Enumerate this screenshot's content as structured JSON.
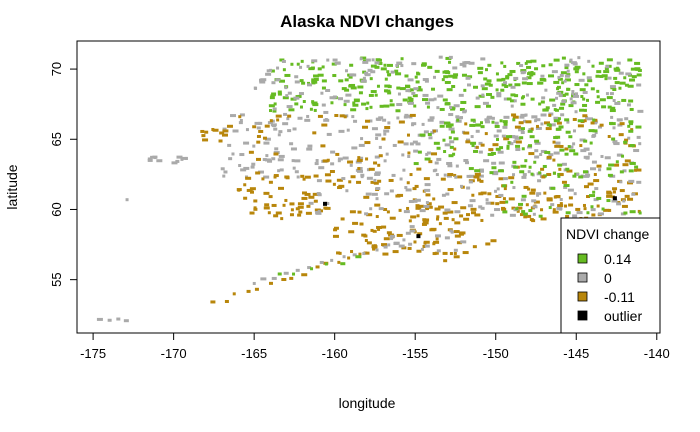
{
  "chart_data": {
    "type": "scatter",
    "title": "Alaska NDVI changes",
    "xlabel": "longitude",
    "ylabel": "latitude",
    "xlim": [
      -176,
      -139.8
    ],
    "ylim": [
      51.2,
      72.0
    ],
    "x_ticks": [
      -175,
      -170,
      -165,
      -160,
      -155,
      -150,
      -145,
      -140
    ],
    "y_ticks": [
      55,
      60,
      65,
      70
    ],
    "grid": false,
    "legend": {
      "title": "NDVI change",
      "placement": "bottom-right",
      "entries": [
        {
          "label": "0.14",
          "color": "#66bb22"
        },
        {
          "label": "0",
          "color": "#aaaaaa"
        },
        {
          "label": "-0.11",
          "color": "#b8860b"
        },
        {
          "label": "outlier",
          "color": "#000000"
        }
      ]
    },
    "colors": {
      "high": "#66bb22",
      "zero": "#aaaaaa",
      "low": "#b8860b",
      "outlier": "#000000"
    },
    "clusters": [
      {
        "category": "high",
        "lon": [
          -164,
          -141
        ],
        "lat": [
          67.0,
          70.8
        ],
        "n": 320
      },
      {
        "category": "zero",
        "lon": [
          -165,
          -141
        ],
        "lat": [
          66.2,
          70.9
        ],
        "n": 170
      },
      {
        "category": "zero",
        "lon": [
          -167,
          -141
        ],
        "lat": [
          62.3,
          66.8
        ],
        "n": 260
      },
      {
        "category": "low",
        "lon": [
          -167,
          -141
        ],
        "lat": [
          62.3,
          66.8
        ],
        "n": 110
      },
      {
        "category": "high",
        "lon": [
          -155,
          -141
        ],
        "lat": [
          62.3,
          66.5
        ],
        "n": 120
      },
      {
        "category": "low",
        "lon": [
          -166,
          -141
        ],
        "lat": [
          59.2,
          62.5
        ],
        "n": 200
      },
      {
        "category": "zero",
        "lon": [
          -162,
          -141
        ],
        "lat": [
          59.5,
          62.5
        ],
        "n": 90
      },
      {
        "category": "high",
        "lon": [
          -150,
          -141
        ],
        "lat": [
          59.5,
          62.0
        ],
        "n": 25
      },
      {
        "category": "low",
        "lon": [
          -160,
          -152
        ],
        "lat": [
          56.8,
          59.5
        ],
        "n": 70
      },
      {
        "category": "zero",
        "lon": [
          -157,
          -152
        ],
        "lat": [
          57.0,
          59.0
        ],
        "n": 20
      },
      {
        "category": "low",
        "lon": [
          -168.5,
          -166.5
        ],
        "lat": [
          64.8,
          66.0
        ],
        "n": 10
      },
      {
        "category": "zero",
        "lon": [
          -171.5,
          -169
        ],
        "lat": [
          63.2,
          63.8
        ],
        "n": 12
      }
    ],
    "strings": [
      {
        "category": "low",
        "lon0": -167.5,
        "lat0": 53.3,
        "lon1": -157.0,
        "lat1": 57.4,
        "n": 16
      },
      {
        "category": "zero",
        "lon0": -165.0,
        "lat0": 54.8,
        "lon1": -156.0,
        "lat1": 57.6,
        "n": 14
      },
      {
        "category": "high",
        "lon0": -163.5,
        "lat0": 55.3,
        "lon1": -158.5,
        "lat1": 56.5,
        "n": 6
      },
      {
        "category": "zero",
        "lon0": -174.5,
        "lat0": 52.2,
        "lon1": -173.0,
        "lat1": 52.1,
        "n": 4
      },
      {
        "category": "zero",
        "lon0": -173.0,
        "lat0": 60.6,
        "lon1": -173.0,
        "lat1": 60.6,
        "n": 1
      },
      {
        "category": "low",
        "lon0": -153.0,
        "lat0": 56.5,
        "lon1": -150.0,
        "lat1": 57.7,
        "n": 6
      },
      {
        "category": "low",
        "lon0": -165.0,
        "lat0": 60.1,
        "lon1": -163.0,
        "lat1": 60.4,
        "n": 4
      }
    ],
    "outliers": [
      {
        "lon": -160.6,
        "lat": 60.4
      },
      {
        "lon": -154.8,
        "lat": 58.1
      },
      {
        "lon": -142.6,
        "lat": 60.8
      }
    ]
  }
}
